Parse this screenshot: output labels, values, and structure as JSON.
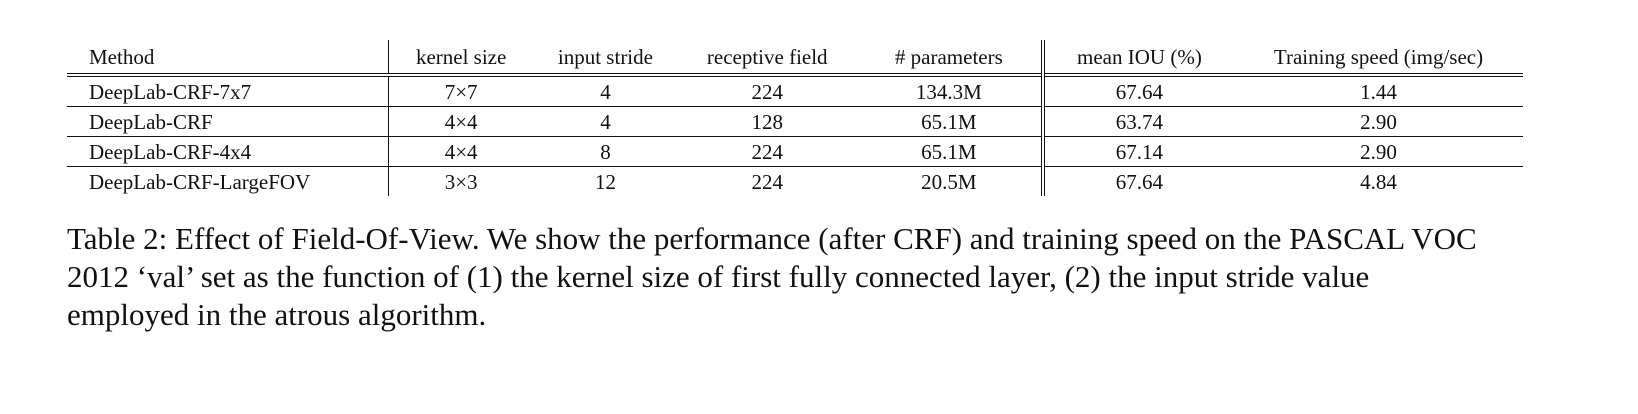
{
  "table": {
    "headers": {
      "method": "Method",
      "kernel_size": "kernel size",
      "input_stride": "input stride",
      "receptive_field": "receptive field",
      "parameters": "# parameters",
      "mean_iou": "mean IOU (%)",
      "training_speed": "Training speed (img/sec)"
    },
    "rows": [
      {
        "method": "DeepLab-CRF-7x7",
        "kernel_size": "7×7",
        "input_stride": "4",
        "receptive_field": "224",
        "parameters": "134.3M",
        "mean_iou": "67.64",
        "training_speed": "1.44"
      },
      {
        "method": "DeepLab-CRF",
        "kernel_size": "4×4",
        "input_stride": "4",
        "receptive_field": "128",
        "parameters": "65.1M",
        "mean_iou": "63.74",
        "training_speed": "2.90"
      },
      {
        "method": "DeepLab-CRF-4x4",
        "kernel_size": "4×4",
        "input_stride": "8",
        "receptive_field": "224",
        "parameters": "65.1M",
        "mean_iou": "67.14",
        "training_speed": "2.90"
      },
      {
        "method": "DeepLab-CRF-LargeFOV",
        "kernel_size": "3×3",
        "input_stride": "12",
        "receptive_field": "224",
        "parameters": "20.5M",
        "mean_iou": "67.64",
        "training_speed": "4.84"
      }
    ]
  },
  "caption": "Table 2: Effect of Field-Of-View. We show the performance (after CRF) and training speed on the PASCAL VOC 2012 ‘val’ set as the function of (1) the kernel size of first fully connected layer, (2) the input stride value employed in the atrous algorithm."
}
